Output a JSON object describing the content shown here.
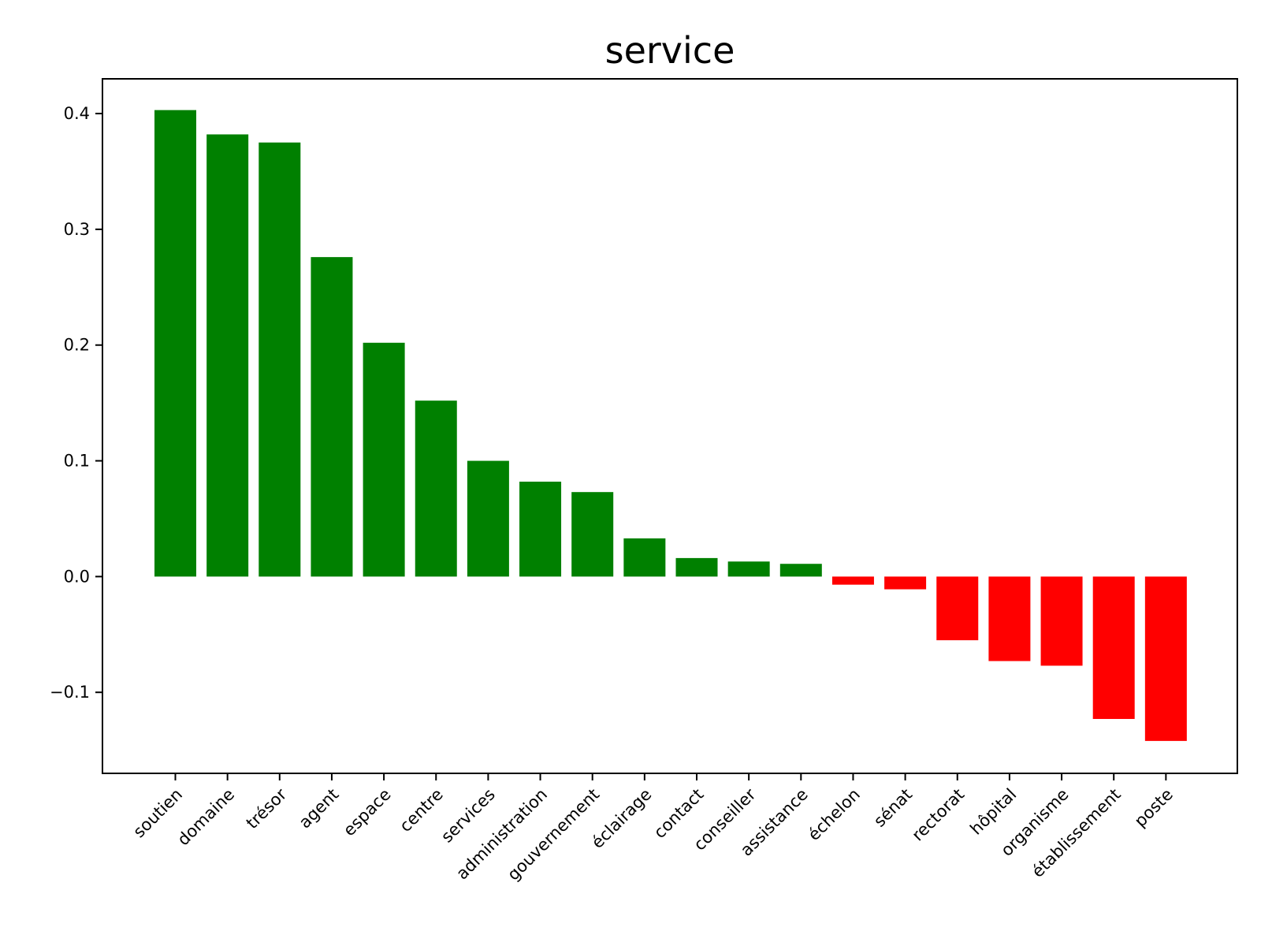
{
  "chart_data": {
    "type": "bar",
    "title": "service",
    "xlabel": "",
    "ylabel": "",
    "categories": [
      "soutien",
      "domaine",
      "trésor",
      "agent",
      "espace",
      "centre",
      "services",
      "administration",
      "gouvernement",
      "éclairage",
      "contact",
      "conseiller",
      "assistance",
      "échelon",
      "sénat",
      "rectorat",
      "hôpital",
      "organisme",
      "établissement",
      "poste"
    ],
    "values": [
      0.403,
      0.382,
      0.375,
      0.276,
      0.202,
      0.152,
      0.1,
      0.082,
      0.073,
      0.033,
      0.016,
      0.013,
      0.011,
      -0.007,
      -0.011,
      -0.055,
      -0.073,
      -0.077,
      -0.123,
      -0.142
    ],
    "yticks": [
      -0.1,
      0.0,
      0.1,
      0.2,
      0.3,
      0.4
    ],
    "ytick_labels": [
      "−0.1",
      "0.0",
      "0.1",
      "0.2",
      "0.3",
      "0.4"
    ],
    "ylim": [
      -0.17,
      0.43
    ],
    "grid": false,
    "colors": {
      "positive": "#008000",
      "negative": "#ff0000"
    }
  }
}
